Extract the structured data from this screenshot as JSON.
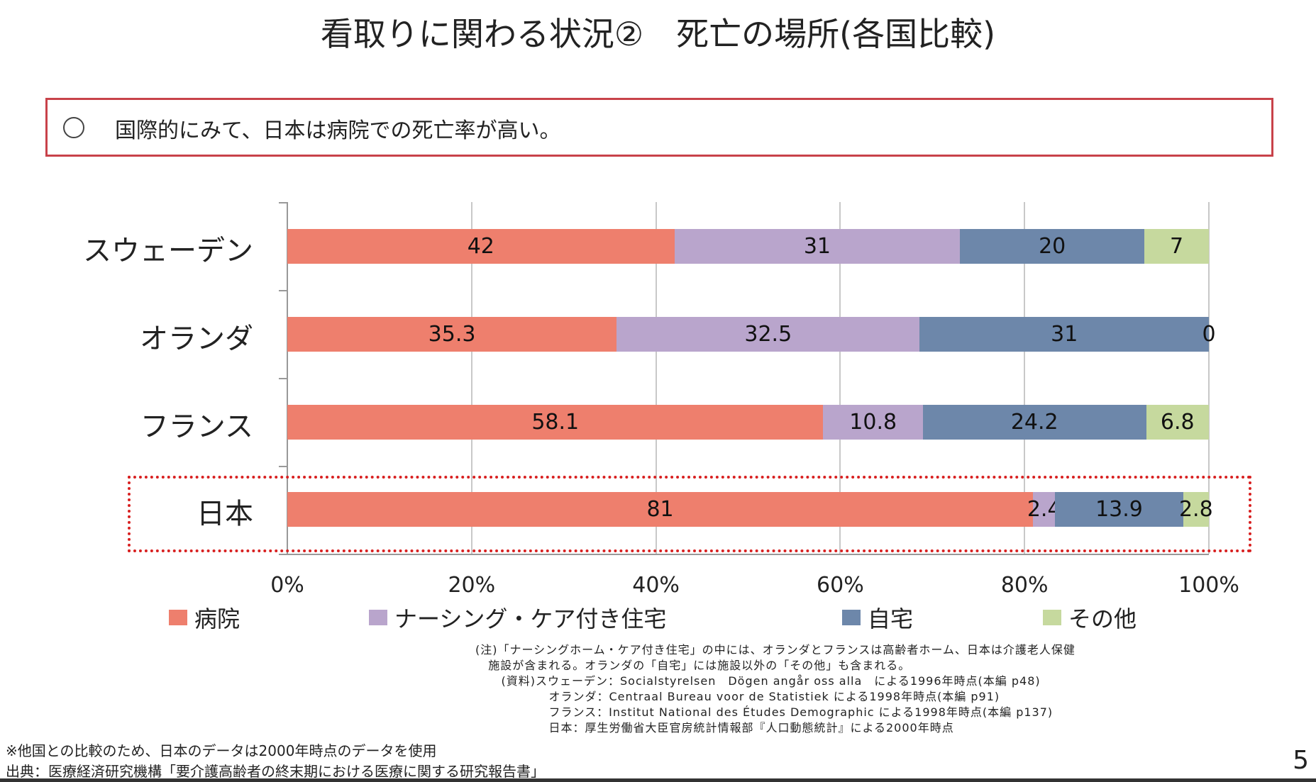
{
  "title": "看取りに関わる状況②　死亡の場所(各国比較)",
  "summary": "国際的にみて、日本は病院での死亡率が高い。",
  "chart_data": {
    "type": "bar",
    "orientation": "horizontal",
    "stacked": true,
    "normalized_percent": true,
    "categories": [
      "スウェーデン",
      "オランダ",
      "フランス",
      "日本"
    ],
    "series": [
      {
        "name": "病院",
        "color": "#ee7f6d",
        "values": [
          42,
          35.3,
          58.1,
          81
        ]
      },
      {
        "name": "ナーシング・ケア付き住宅",
        "color": "#b9a5cc",
        "values": [
          31,
          32.5,
          10.8,
          2.4
        ]
      },
      {
        "name": "自宅",
        "color": "#6d87aa",
        "values": [
          20,
          31,
          24.2,
          13.9
        ]
      },
      {
        "name": "その他",
        "color": "#c6d99e",
        "values": [
          7,
          0,
          6.8,
          2.8
        ]
      }
    ],
    "xlim": [
      0,
      100
    ],
    "xticks": [
      "0%",
      "20%",
      "40%",
      "60%",
      "80%",
      "100%"
    ],
    "grid": true,
    "legend": "bottom",
    "highlight": "日本"
  },
  "notes": [
    "(注)「ナーシングホーム・ケア付き住宅」の中には、オランダとフランスは高齢者ホーム、日本は介護老人保健",
    "   施設が含まれる。オランダの「自宅」には施設以外の「その他」も含まれる。",
    "      (資料)スウェーデン：Socialstyrelsen　Dögen angår oss alla　による1996年時点(本編 p48)",
    "                 オランダ：Centraal Bureau voor de Statistiek による1998年時点(本編 p91)",
    "                 フランス：Institut National des Études Demographic による1998年時点(本編 p137)",
    "                 日本：厚生労働省大臣官房統計情報部『人口動態統計』による2000年時点"
  ],
  "footnote": "※他国との比較のため、日本のデータは2000年時点のデータを使用",
  "source": "出典：医療経済研究機構「要介護高齢者の終末期における医療に関する研究報告書」",
  "page_number": "5"
}
